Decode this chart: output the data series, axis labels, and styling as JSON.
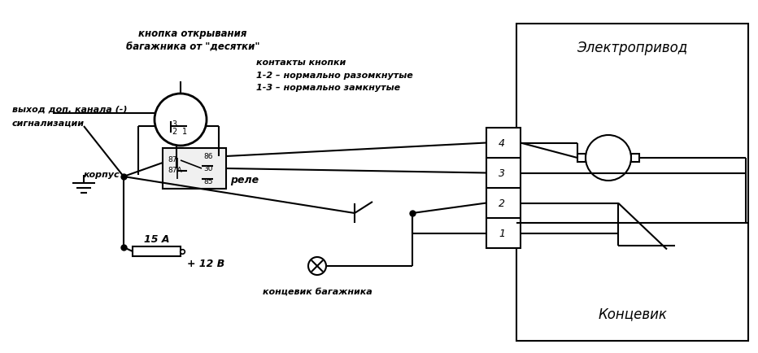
{
  "bg_color": "#ffffff",
  "line_color": "#000000",
  "lw": 1.5,
  "fig_width": 9.32,
  "fig_height": 4.35,
  "texts": {
    "button_label1": "кнопка открывания",
    "button_label2": "багажника от \"десятки\"",
    "contacts_label1": "контакты кнопки",
    "contacts_label2": "1-2 – нормально разомкнутые",
    "contacts_label3": "1-3 – нормально замкнутые",
    "signal_label1": "выход доп. канала (-)",
    "signal_label2": "сигнализации",
    "corps_label": "корпус",
    "relay_label": "реле",
    "fuse_label": "15 А",
    "voltage_label": "+ 12 В",
    "electrodriv_label": "Электропривод",
    "kontsevic_label": "Концевик",
    "konts_bag_label": "концевик багажника",
    "pin4": "4",
    "pin3": "3",
    "pin2": "2",
    "pin1": "1",
    "r87": "87",
    "r87a": "87A",
    "r86": "86",
    "r30": "30",
    "r85": "85"
  }
}
